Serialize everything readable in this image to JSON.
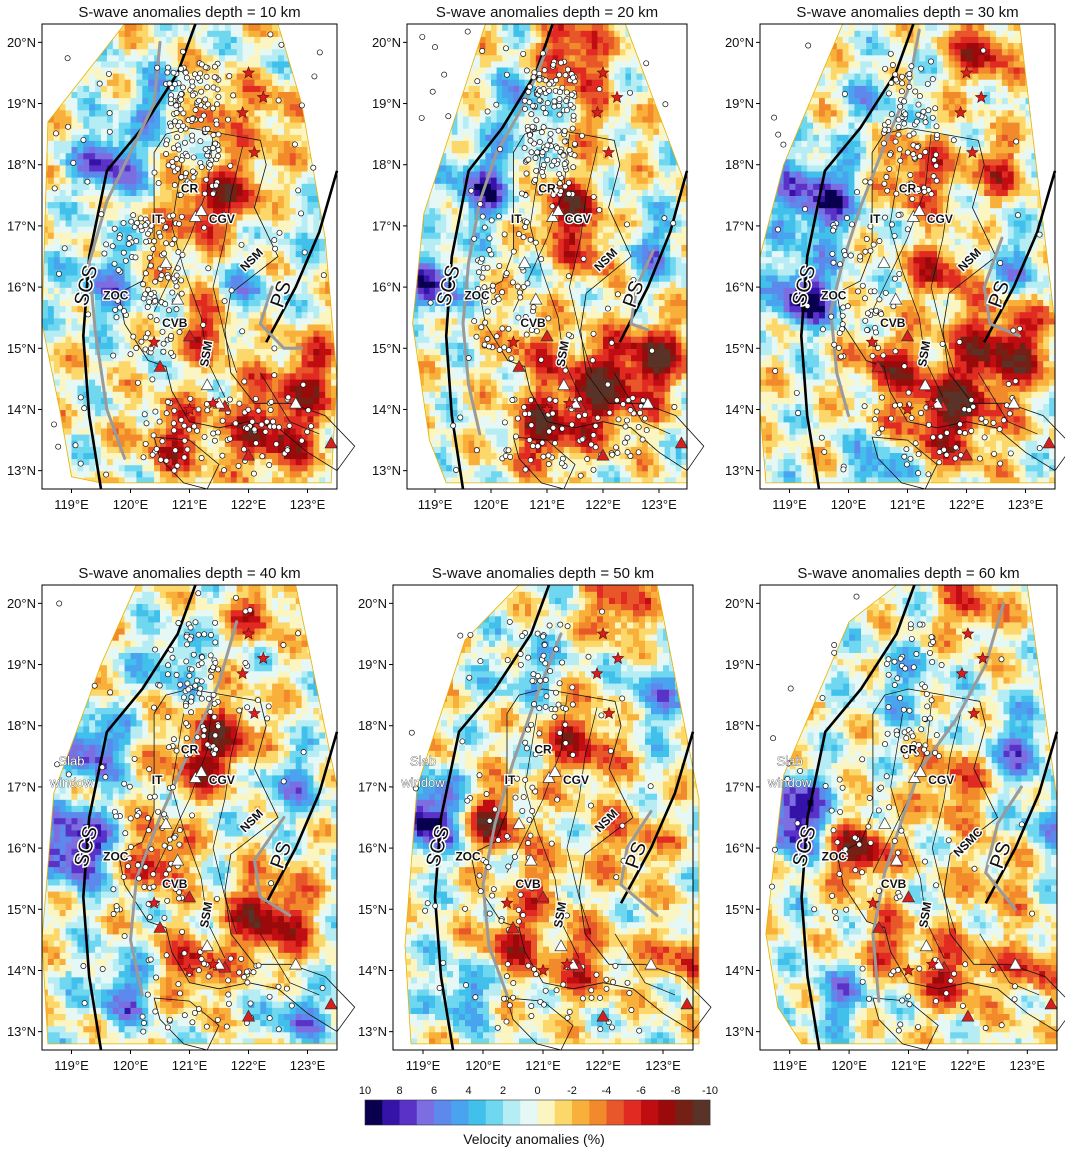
{
  "chart_data": {
    "type": "heatmap",
    "panels": [
      {
        "title": "S-wave anomalies depth = 10 km",
        "depth_km": 10,
        "labels": [
          "IT",
          "CR",
          "CGV",
          "ZOC",
          "CVB",
          "SSM",
          "NSM",
          "SCS",
          "PS"
        ]
      },
      {
        "title": "S-wave anomalies depth = 20 km",
        "depth_km": 20,
        "labels": [
          "IT",
          "CR",
          "CGV",
          "ZOC",
          "CVB",
          "SSM",
          "NSM",
          "SCS",
          "PS"
        ]
      },
      {
        "title": "S-wave anomalies depth = 30 km",
        "depth_km": 30,
        "labels": [
          "IT",
          "CR",
          "CGV",
          "ZOC",
          "CVB",
          "SSM",
          "NSM",
          "SCS",
          "PS"
        ]
      },
      {
        "title": "S-wave anomalies depth = 40 km",
        "depth_km": 40,
        "labels": [
          "IT",
          "CR",
          "CGV",
          "ZOC",
          "CVB",
          "SSM",
          "NSM",
          "SCS",
          "PS",
          "Slab",
          "window"
        ]
      },
      {
        "title": "S-wave anomalies depth = 50 km",
        "depth_km": 50,
        "labels": [
          "IT",
          "CR",
          "CGV",
          "ZOC",
          "CVB",
          "SSM",
          "NSM",
          "SCS",
          "PS",
          "Slab",
          "window"
        ]
      },
      {
        "title": "S-wave anomalies depth = 60 km",
        "depth_km": 60,
        "labels": [
          "CR",
          "CGV",
          "ZOC",
          "CVB",
          "SSM",
          "NSMC",
          "SCS",
          "PS",
          "Slab",
          "window"
        ]
      }
    ],
    "x_ticks": [
      "119°E",
      "120°E",
      "121°E",
      "122°E",
      "123°E"
    ],
    "x_tick_values": [
      119,
      120,
      121,
      122,
      123
    ],
    "y_ticks": [
      "13°N",
      "14°N",
      "15°N",
      "16°N",
      "17°N",
      "18°N",
      "19°N",
      "20°N"
    ],
    "y_tick_values": [
      13,
      14,
      15,
      16,
      17,
      18,
      19,
      20
    ],
    "xlim": [
      118.5,
      123.5
    ],
    "ylim": [
      12.7,
      20.3
    ],
    "colorbar": {
      "label": "Velocity anomalies (%)",
      "tick_labels": [
        "10",
        "8",
        "6",
        "4",
        "2",
        "0",
        "-2",
        "-4",
        "-6",
        "-8",
        "-10"
      ],
      "tick_values": [
        10,
        8,
        6,
        4,
        2,
        0,
        -2,
        -4,
        -6,
        -8,
        -10
      ],
      "colors": [
        "#08004f",
        "#3512a8",
        "#5a32c8",
        "#7c6ee0",
        "#5d88ec",
        "#4aa3ee",
        "#42c0ec",
        "#6fd7ef",
        "#b6ecf4",
        "#e6f8f6",
        "#fbf5c2",
        "#fcd86a",
        "#f8b03a",
        "#f28a2c",
        "#e8572a",
        "#e02a22",
        "#c00d12",
        "#9a0a0a",
        "#752015",
        "#5a3328"
      ]
    }
  }
}
